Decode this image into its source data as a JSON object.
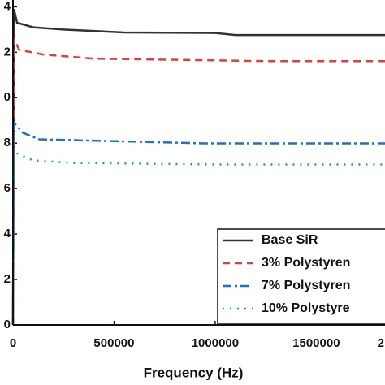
{
  "chart_data": {
    "type": "line",
    "xlabel": "Frequency (Hz)",
    "xlim": [
      0,
      1840000
    ],
    "xticks": [
      0,
      500000,
      1000000,
      1500000,
      {
        "value": 2000000,
        "label": "2"
      }
    ],
    "ylim": [
      0,
      14.3
    ],
    "yticks": [
      0,
      2,
      4,
      6,
      8,
      {
        "value": 10,
        "label": "0"
      },
      {
        "value": 12,
        "label": "2"
      },
      {
        "value": 14,
        "label": "4"
      }
    ],
    "legend": "lower right",
    "series": [
      {
        "name": "Base SiR",
        "color": "#333333",
        "linestyle": "solid",
        "x": [
          0,
          5000,
          20000,
          100000,
          250000,
          550000,
          1000000,
          1100000,
          1840000
        ],
        "values": [
          0,
          13.9,
          13.3,
          13.1,
          13.0,
          12.87,
          12.85,
          12.76,
          12.76
        ]
      },
      {
        "name": "3% Polystyren",
        "color": "#d9413a",
        "linestyle": "dashed",
        "x": [
          0,
          5000,
          30000,
          150000,
          400000,
          1250000,
          1840000
        ],
        "values": [
          0,
          12.6,
          12.11,
          11.9,
          11.72,
          11.61,
          11.61
        ]
      },
      {
        "name": "7% Polystyren",
        "color": "#1f6fd0",
        "linestyle": "dashdot",
        "x": [
          0,
          5000,
          50000,
          130000,
          950000,
          1840000
        ],
        "values": [
          0,
          8.9,
          8.45,
          8.17,
          7.99,
          7.99
        ]
      },
      {
        "name": "10% Polystyre",
        "color": "#1aa37a",
        "linestyle": "dotted",
        "x": [
          0,
          5000,
          100000,
          300000,
          1000000,
          1840000
        ],
        "values": [
          0,
          7.6,
          7.24,
          7.13,
          7.06,
          7.06
        ]
      }
    ]
  }
}
